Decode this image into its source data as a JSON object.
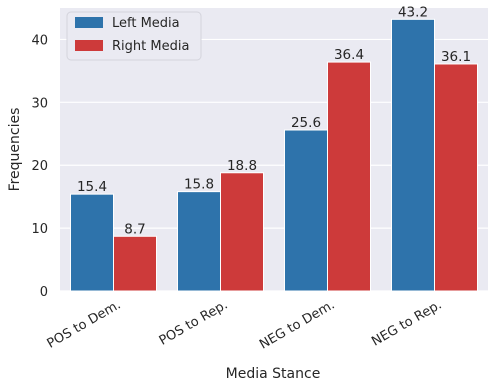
{
  "chart_data": {
    "type": "bar",
    "categories": [
      "POS to Dem.",
      "POS to Rep.",
      "NEG to Dem.",
      "NEG to Rep."
    ],
    "series": [
      {
        "name": "Left Media",
        "values": [
          15.4,
          15.8,
          25.6,
          43.2
        ],
        "color": "#2e73ab"
      },
      {
        "name": "Right Media",
        "values": [
          8.7,
          18.8,
          36.4,
          36.1
        ],
        "color": "#cd3a3a"
      }
    ],
    "xlabel": "Media Stance",
    "ylabel": "Frequencies",
    "ylim": [
      0,
      45
    ],
    "yticks": [
      0,
      10,
      20,
      30,
      40
    ],
    "grid": true,
    "legend": "top-left",
    "background": "#eaeaf2",
    "grid_color": "#ffffff",
    "bar_labels": true
  }
}
